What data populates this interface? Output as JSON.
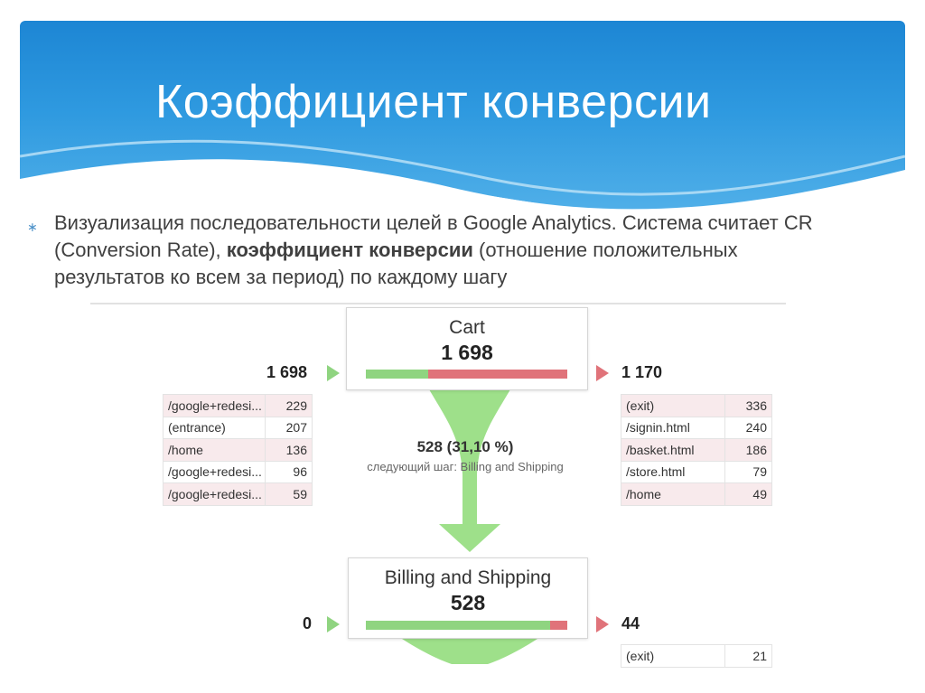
{
  "slide": {
    "title": "Коэффициент конверсии",
    "bullet_mark": "∗",
    "bullet_part1": "Визуализация последовательности целей в Google Analytics. Система считает CR (Conversion Rate),",
    "bullet_bold": " коэффициент конверсии",
    "bullet_part2": " (отношение положительных результатов ко всем за период) по каждому шагу",
    "colors": {
      "header": "#2f9ae0",
      "green": "#8fd480",
      "red": "#e0737a"
    }
  },
  "funnel": {
    "steps": [
      {
        "name": "Cart",
        "count": "1 698",
        "entrances": "1 698",
        "exits": "1 170",
        "continue_fraction": 0.311,
        "entrance_sources": [
          {
            "page": "/google+redesi...",
            "value": "229",
            "shade": "pink"
          },
          {
            "page": "(entrance)",
            "value": "207",
            "shade": "white"
          },
          {
            "page": "/home",
            "value": "136",
            "shade": "pink"
          },
          {
            "page": "/google+redesi...",
            "value": "96",
            "shade": "white"
          },
          {
            "page": "/google+redesi...",
            "value": "59",
            "shade": "pink"
          }
        ],
        "exit_pages": [
          {
            "page": "(exit)",
            "value": "336",
            "shade": "pink"
          },
          {
            "page": "/signin.html",
            "value": "240",
            "shade": "white"
          },
          {
            "page": "/basket.html",
            "value": "186",
            "shade": "pink"
          },
          {
            "page": "/store.html",
            "value": "79",
            "shade": "white"
          },
          {
            "page": "/home",
            "value": "49",
            "shade": "pink"
          }
        ]
      },
      {
        "name": "Billing and Shipping",
        "count": "528",
        "entrances": "0",
        "exits": "44",
        "continue_fraction": 0.917,
        "exit_pages": [
          {
            "page": "(exit)",
            "value": "21",
            "shade": "white"
          }
        ]
      }
    ],
    "conversion": {
      "main": "528 (31,10 %)",
      "sub": "следующий шаг: Billing and Shipping"
    }
  }
}
